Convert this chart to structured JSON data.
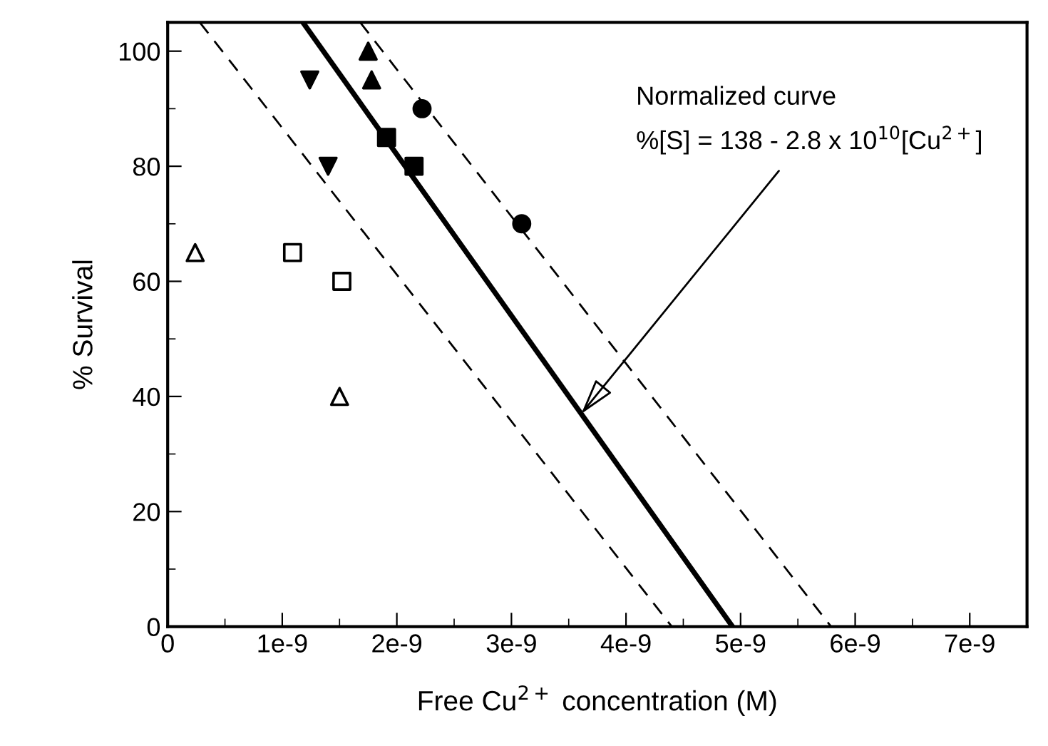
{
  "chart_data": {
    "type": "scatter",
    "xlabel": "Free Cu$^{2+}$ concentration (M)",
    "ylabel": "% Survival",
    "xlim": [
      0,
      7.5e-09
    ],
    "ylim": [
      0,
      105
    ],
    "xticks": [
      0,
      {
        "value": 1e-09,
        "label": "1e-9"
      },
      {
        "value": 2e-09,
        "label": "2e-9"
      },
      {
        "value": 3e-09,
        "label": "3e-9"
      },
      {
        "value": 4e-09,
        "label": "4e-9"
      },
      {
        "value": 5e-09,
        "label": "5e-9"
      },
      {
        "value": 6e-09,
        "label": "6e-9"
      },
      {
        "value": 7e-09,
        "label": "7e-9"
      }
    ],
    "yticks": [
      0,
      20,
      40,
      60,
      80,
      100
    ],
    "grid": false,
    "legend": false,
    "series": [
      {
        "marker": "triangle",
        "color": "#000000",
        "x": [
          1.75e-09,
          1.78e-09
        ],
        "values": [
          100,
          95
        ]
      },
      {
        "marker": "triangle_down",
        "color": "#000000",
        "x": [
          1.24e-09,
          1.4e-09
        ],
        "values": [
          95,
          80
        ]
      },
      {
        "marker": "circle",
        "color": "#000000",
        "x": [
          2.22e-09,
          3.09e-09
        ],
        "values": [
          90,
          70
        ]
      },
      {
        "marker": "square",
        "color": "#000000",
        "x": [
          1.91e-09,
          2.15e-09
        ],
        "values": [
          85,
          80
        ]
      },
      {
        "marker": "triangle",
        "color": "#ffffff",
        "x": [
          2.4e-10,
          1.5e-09
        ],
        "values": [
          65,
          40
        ]
      },
      {
        "marker": "square",
        "color": "#ffffff",
        "x": [
          1.09e-09,
          1.52e-09
        ],
        "values": [
          65,
          60
        ]
      },
      {
        "type": "line",
        "marker": "none",
        "line_style": "solid",
        "color": "#000000",
        "x": [
          1.18e-09,
          4.93e-09
        ],
        "values": [
          105,
          0
        ]
      },
      {
        "type": "line",
        "marker": "none",
        "line_style": "dashed",
        "color": "#000000",
        "x": [
          2.8e-10,
          4.4e-09
        ],
        "values": [
          105,
          0
        ]
      },
      {
        "type": "line",
        "marker": "none",
        "line_style": "dashed",
        "color": "#000000",
        "x": [
          1.68e-09,
          5.79e-09
        ],
        "values": [
          105,
          0
        ]
      }
    ],
    "annotations": [
      "Normalized curve",
      {
        "text": "%[S] = 138 - 2.8 x 10$^{10}$[Cu$^{2+}$]",
        "x": 3.61e-09,
        "y": 37
      }
    ]
  }
}
